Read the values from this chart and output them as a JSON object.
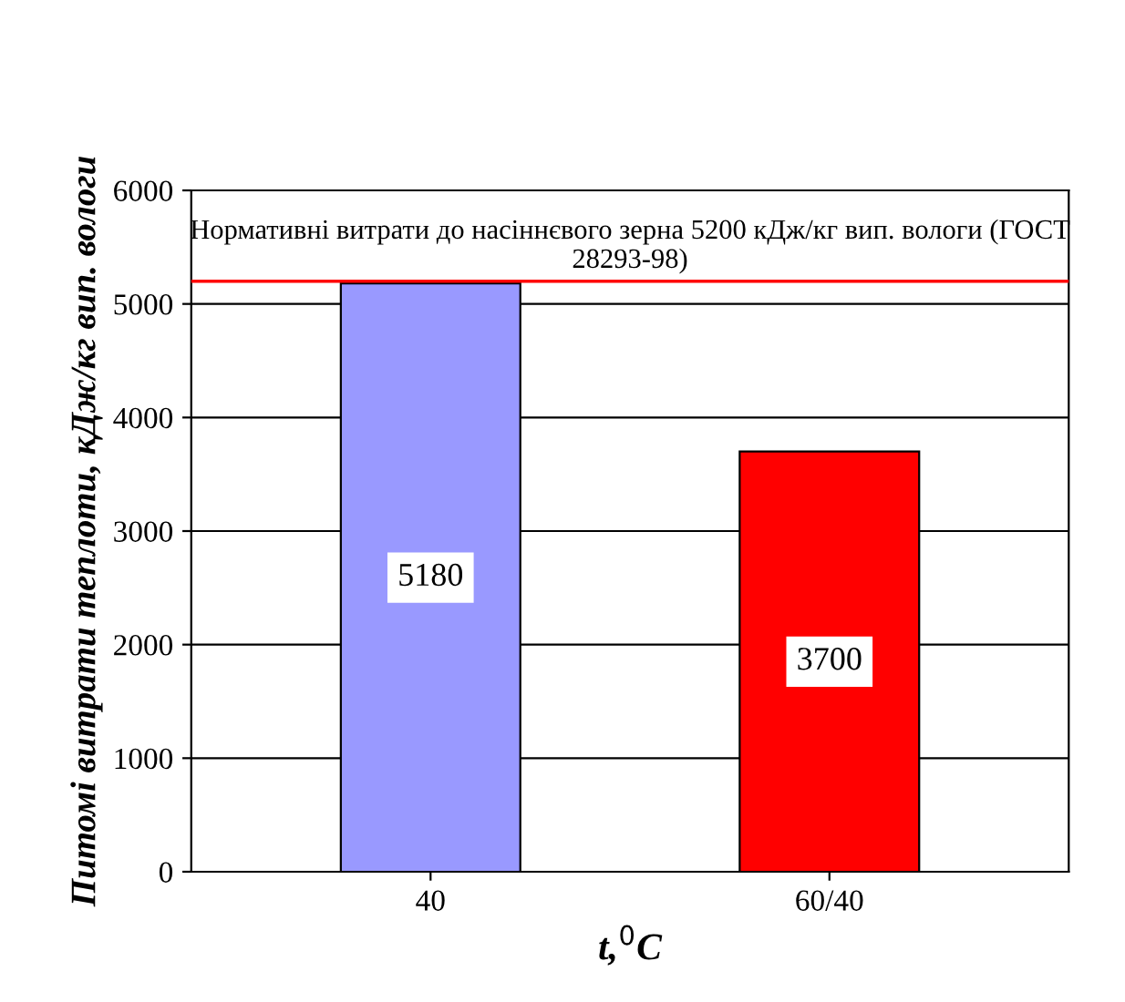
{
  "chart_data": {
    "type": "bar",
    "xlabel": "t,$^{0}$C",
    "ylabel": "Питомі витрати теплоти, кДж/кг вип. вологи",
    "categories": [
      "40",
      "60/40"
    ],
    "values": [
      5180,
      3700
    ],
    "colors": [
      "#9999ff",
      "#ff0000"
    ],
    "data_labels": true,
    "ylim": [
      0,
      6000
    ],
    "yticks": [
      0,
      1000,
      2000,
      3000,
      4000,
      5000,
      6000
    ],
    "grid": "y",
    "ref_lines": [
      {
        "axis": "y",
        "value": 5200,
        "label": "Нормативні витрати до насіннєвого зерна 5200 кДж/кг вип. вологи (ГОСТ 28293-98)",
        "color": "#ff0000"
      }
    ]
  }
}
